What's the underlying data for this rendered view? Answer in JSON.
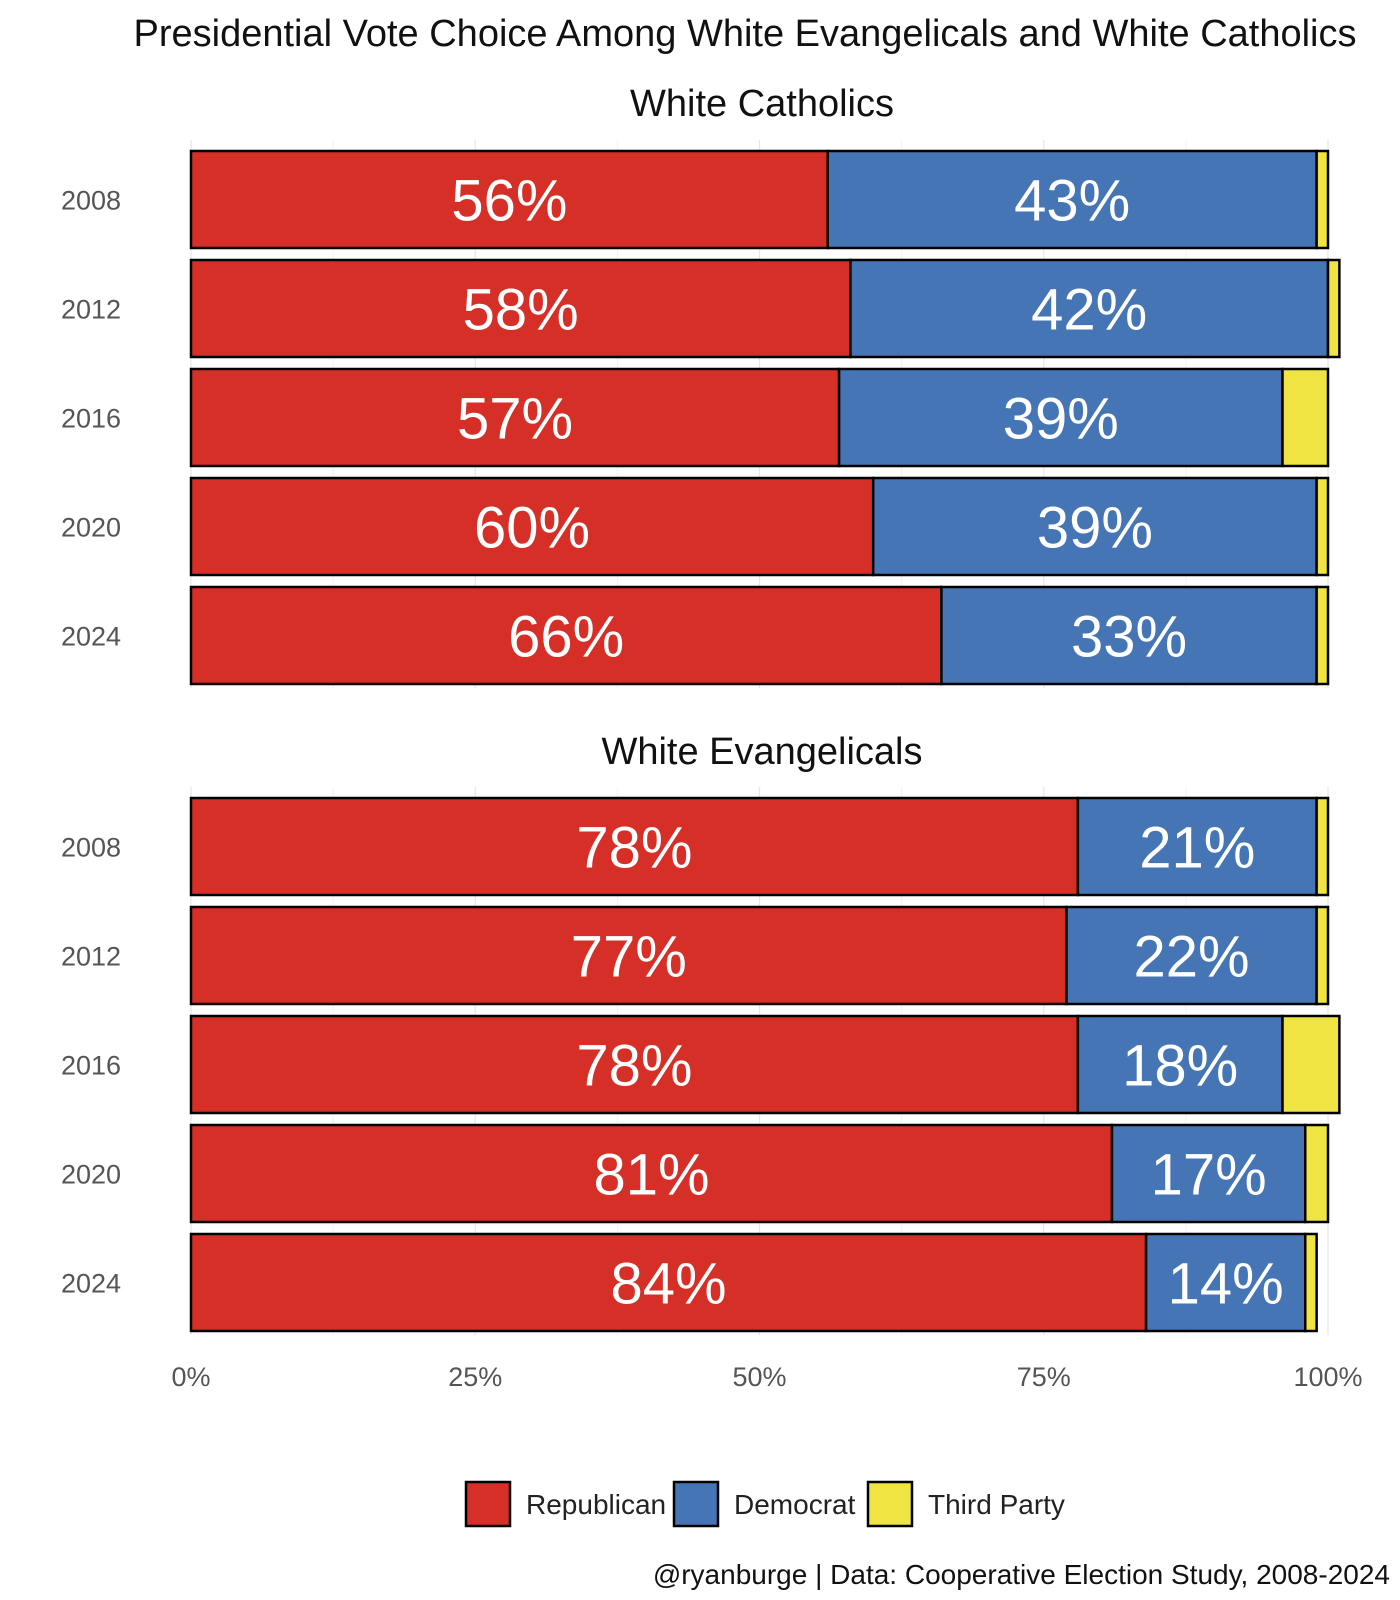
{
  "chart_data": {
    "type": "bar",
    "orientation": "horizontal",
    "stacked": true,
    "title": "Presidential Vote Choice Among White Evangelicals and White Catholics",
    "caption": "@ryanburge | Data: Cooperative Election Study, 2008-2024",
    "categories": [
      "2008",
      "2012",
      "2016",
      "2020",
      "2024"
    ],
    "xlim": [
      0,
      100
    ],
    "xticks": [
      "0%",
      "25%",
      "50%",
      "75%",
      "100%"
    ],
    "grid": true,
    "legend_position": "bottom",
    "legend": [
      {
        "name": "Republican",
        "color": "#d62f27"
      },
      {
        "name": "Democrat",
        "color": "#4575b4"
      },
      {
        "name": "Third Party",
        "color": "#f0e442"
      }
    ],
    "panels": [
      {
        "title": "White Catholics",
        "series": [
          {
            "name": "Republican",
            "values": [
              56,
              58,
              57,
              60,
              66
            ],
            "labels": [
              "56%",
              "58%",
              "57%",
              "60%",
              "66%"
            ]
          },
          {
            "name": "Democrat",
            "values": [
              43,
              42,
              39,
              39,
              33
            ],
            "labels": [
              "43%",
              "42%",
              "39%",
              "39%",
              "33%"
            ]
          },
          {
            "name": "Third Party",
            "values": [
              1,
              1,
              4,
              1,
              1
            ]
          }
        ]
      },
      {
        "title": "White Evangelicals",
        "series": [
          {
            "name": "Republican",
            "values": [
              78,
              77,
              78,
              81,
              84
            ],
            "labels": [
              "78%",
              "77%",
              "78%",
              "81%",
              "84%"
            ]
          },
          {
            "name": "Democrat",
            "values": [
              21,
              22,
              18,
              17,
              14
            ],
            "labels": [
              "21%",
              "22%",
              "18%",
              "17%",
              "14%"
            ]
          },
          {
            "name": "Third Party",
            "values": [
              1,
              1,
              5,
              2,
              1
            ]
          }
        ]
      }
    ]
  }
}
